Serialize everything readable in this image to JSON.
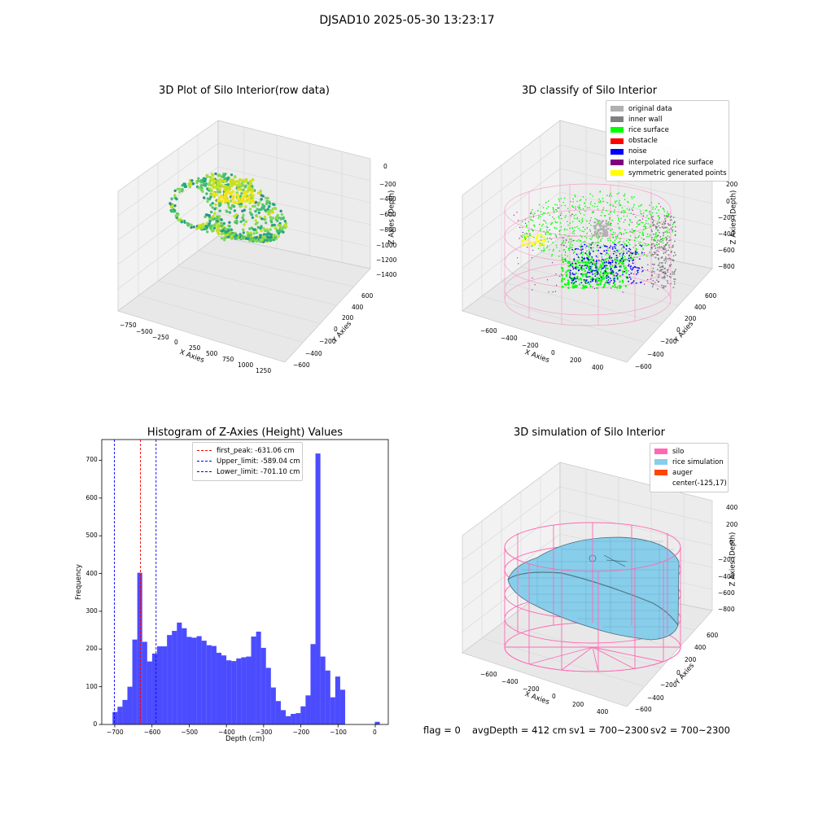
{
  "suptitle": "DJSAD10 2025-05-30 13:23:17",
  "panels": {
    "raw": {
      "title": "3D Plot of Silo Interior(row data)",
      "xlabel": "X Axies",
      "ylabel": "Y Axies",
      "zlabel": "Z Axies (Depth)",
      "xticks": [
        "−750",
        "−500",
        "−250",
        "0",
        "250",
        "500",
        "750",
        "1000",
        "1250"
      ],
      "yticks": [
        "−600",
        "−400",
        "−200",
        "0",
        "200",
        "400",
        "600"
      ],
      "zticks": [
        "0",
        "−200",
        "−400",
        "−600",
        "−800",
        "−1000",
        "−1200",
        "−1400"
      ]
    },
    "classify": {
      "title": "3D classify of Silo Interior",
      "xlabel": "X Axies",
      "ylabel": "Y Axies",
      "zlabel": "Z Axies (Depth)",
      "xticks": [
        "−600",
        "−400",
        "−200",
        "0",
        "200",
        "400"
      ],
      "yticks": [
        "−600",
        "−400",
        "−200",
        "0",
        "200",
        "400",
        "600"
      ],
      "zticks": [
        "200",
        "0",
        "−200",
        "−400",
        "−600",
        "−800"
      ],
      "legend": [
        {
          "label": "original data",
          "color": "#b0b0b0"
        },
        {
          "label": "inner wall",
          "color": "#808080"
        },
        {
          "label": "rice surface",
          "color": "#00ff00"
        },
        {
          "label": "obstacle",
          "color": "#ff0000"
        },
        {
          "label": "noise",
          "color": "#0000ff"
        },
        {
          "label": "interpolated rice surface",
          "color": "#800080"
        },
        {
          "label": "symmetric generated points",
          "color": "#ffff00"
        }
      ]
    },
    "simulation": {
      "title": "3D simulation of Silo Interior",
      "xlabel": "X Axies",
      "ylabel": "Y Axies",
      "zlabel": "Z Axies (Depth)",
      "xticks": [
        "−600",
        "−400",
        "−200",
        "0",
        "200",
        "400"
      ],
      "yticks": [
        "−600",
        "−400",
        "−200",
        "0",
        "200",
        "400",
        "600"
      ],
      "zticks": [
        "400",
        "200",
        "0",
        "−200",
        "−400",
        "−600",
        "−800"
      ],
      "legend": [
        {
          "label": "silo",
          "color": "#ff69b4"
        },
        {
          "label": "rice simulation",
          "color": "#87ceeb"
        },
        {
          "label": "auger",
          "color": "#ff4500"
        },
        {
          "label": "center(-125,17)",
          "color": ""
        }
      ]
    }
  },
  "status": {
    "flag": "flag = 0",
    "avg": "avgDepth = 412 cm",
    "sv1": "sv1 = 700~2300",
    "sv2": "sv2 = 700~2300"
  },
  "chart_data": [
    {
      "type": "bar",
      "title": "Histogram of Z-Axies (Height) Values",
      "xlabel": "Depth (cm)",
      "ylabel": "Frequency",
      "xlim": [
        -735,
        35
      ],
      "ylim": [
        0,
        755
      ],
      "xticks": [
        -700,
        -600,
        -500,
        -400,
        -300,
        -200,
        -100,
        0
      ],
      "yticks": [
        0,
        100,
        200,
        300,
        400,
        500,
        600,
        700
      ],
      "bar_color": "#0000ff",
      "bin_width": 13.3,
      "bin_left_edges": [
        -706,
        -692.7,
        -679.4,
        -666.1,
        -652.8,
        -639.5,
        -626.2,
        -612.9,
        -599.6,
        -586.3,
        -573,
        -559.7,
        -546.4,
        -533.1,
        -519.8,
        -506.5,
        -493.2,
        -479.9,
        -466.6,
        -453.3,
        -440,
        -426.7,
        -413.4,
        -400.1,
        -386.8,
        -373.5,
        -360.2,
        -346.9,
        -333.6,
        -320.3,
        -307,
        -293.7,
        -280.4,
        -267.1,
        -253.8,
        -240.5,
        -227.2,
        -213.9,
        -200.6,
        -187.3,
        -174,
        -160.7,
        -147.4,
        -134.1,
        -120.8,
        -107.5,
        -94.2,
        -80.9,
        -67.6,
        -54.3,
        -41,
        -27.7,
        -14.4,
        -1.1
      ],
      "values": [
        33,
        47,
        65,
        100,
        225,
        402,
        219,
        167,
        188,
        207,
        207,
        237,
        248,
        270,
        255,
        232,
        230,
        234,
        222,
        210,
        208,
        190,
        183,
        170,
        168,
        175,
        178,
        180,
        233,
        246,
        203,
        150,
        98,
        62,
        38,
        22,
        28,
        30,
        48,
        77,
        213,
        718,
        180,
        143,
        72,
        127,
        92,
        0,
        0,
        0,
        0,
        0,
        0,
        7
      ],
      "lines": [
        {
          "label": "first_peak: -631.06 cm",
          "x": -631.06,
          "color": "#ff0000"
        },
        {
          "label": "Upper_limit: -589.04 cm",
          "x": -589.04,
          "color": "#0000ff"
        },
        {
          "label": "Lower_limit: -701.10 cm",
          "x": -701.1,
          "color": "#0000ff"
        }
      ]
    }
  ]
}
